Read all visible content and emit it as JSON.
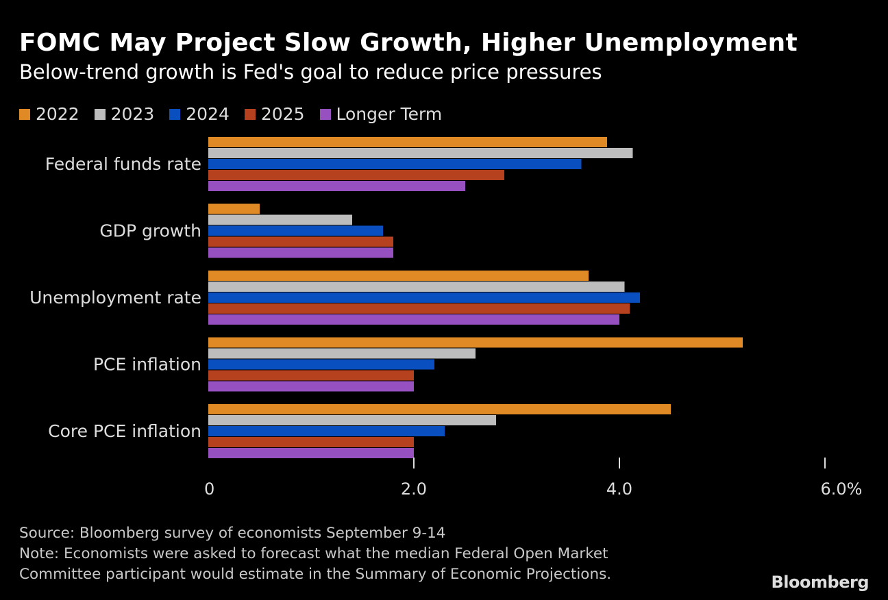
{
  "title": "FOMC May Project Slow Growth, Higher Unemployment",
  "subtitle": "Below-trend growth is Fed's goal to reduce price pressures",
  "chart_data": {
    "type": "bar",
    "orientation": "horizontal",
    "categories": [
      "Federal funds rate",
      "GDP growth",
      "Unemployment rate",
      "PCE inflation",
      "Core PCE inflation"
    ],
    "series": [
      {
        "name": "2022",
        "color": "#e08a26",
        "values": [
          3.88,
          0.5,
          3.7,
          5.2,
          4.5
        ]
      },
      {
        "name": "2023",
        "color": "#bdbdbd",
        "values": [
          4.13,
          1.4,
          4.05,
          2.6,
          2.8
        ]
      },
      {
        "name": "2024",
        "color": "#0a4fbf",
        "values": [
          3.63,
          1.7,
          4.2,
          2.2,
          2.3
        ]
      },
      {
        "name": "2025",
        "color": "#b5411e",
        "values": [
          2.88,
          1.8,
          4.1,
          2.0,
          2.0
        ]
      },
      {
        "name": "Longer Term",
        "color": "#9650c0",
        "values": [
          2.5,
          1.8,
          4.0,
          2.0,
          2.0
        ]
      }
    ],
    "xlim": [
      0,
      6
    ],
    "xticks": [
      0,
      2,
      4,
      6
    ],
    "xtick_labels": [
      "0",
      "2.0",
      "4.0",
      "6.0%"
    ],
    "grid": false,
    "legend_position": "top-left"
  },
  "footer": {
    "source": "Source: Bloomberg survey of economists September 9-14",
    "note_line1": "Note: Economists were asked to forecast what the median Federal Open Market",
    "note_line2": "Committee participant would estimate in the Summary of Economic Projections."
  },
  "logo": "Bloomberg"
}
